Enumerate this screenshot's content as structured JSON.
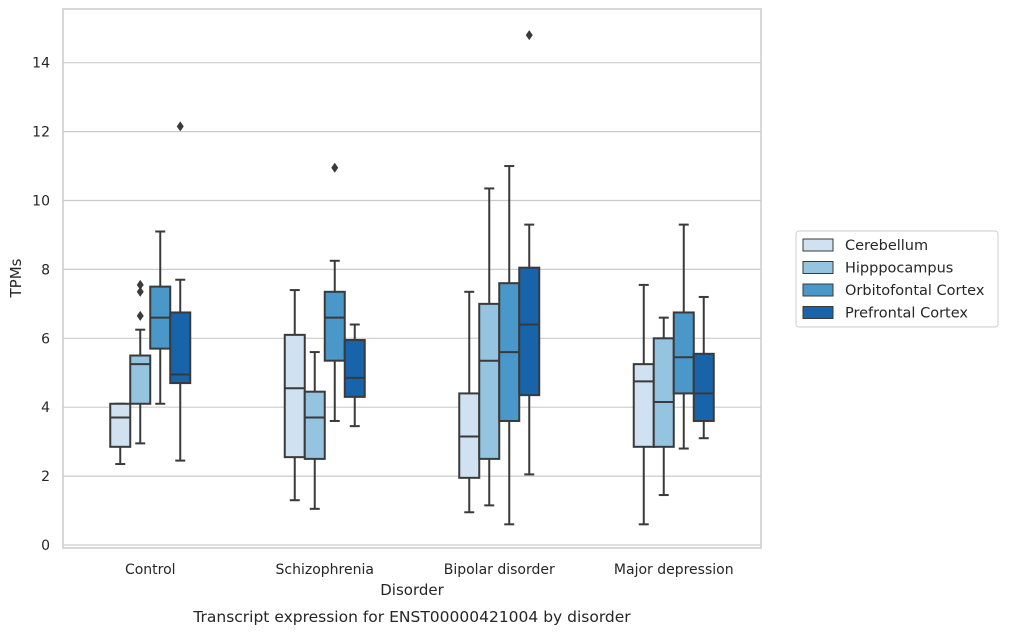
{
  "caption": "Transcript expression for ENST00000421004 by disorder",
  "chart_data": {
    "type": "box",
    "xlabel": "Disorder",
    "ylabel": "TPMs",
    "ylim": [
      -0.2,
      15.4
    ],
    "yticks": [
      0,
      2,
      4,
      6,
      8,
      10,
      12,
      14
    ],
    "grid": "horizontal",
    "legend_position": "right",
    "categories": [
      "Control",
      "Schizophrenia",
      "Bipolar disorder",
      "Major depression"
    ],
    "series": [
      {
        "name": "Cerebellum",
        "color": "#d0e1f2",
        "boxes": [
          {
            "whisker_low": 2.35,
            "q1": 2.85,
            "median": 3.7,
            "q3": 4.1,
            "whisker_high": 4.1,
            "outliers": []
          },
          {
            "whisker_low": 1.3,
            "q1": 2.55,
            "median": 4.55,
            "q3": 6.1,
            "whisker_high": 7.4,
            "outliers": []
          },
          {
            "whisker_low": 0.95,
            "q1": 1.95,
            "median": 3.15,
            "q3": 4.4,
            "whisker_high": 7.35,
            "outliers": []
          },
          {
            "whisker_low": 0.6,
            "q1": 2.85,
            "median": 4.75,
            "q3": 5.25,
            "whisker_high": 7.55,
            "outliers": []
          }
        ]
      },
      {
        "name": "Hipppocampus",
        "color": "#94c4df",
        "boxes": [
          {
            "whisker_low": 2.95,
            "q1": 4.1,
            "median": 5.25,
            "q3": 5.5,
            "whisker_high": 6.25,
            "outliers": [
              6.65,
              7.35,
              7.55
            ]
          },
          {
            "whisker_low": 1.05,
            "q1": 2.5,
            "median": 3.7,
            "q3": 4.45,
            "whisker_high": 5.6,
            "outliers": []
          },
          {
            "whisker_low": 1.15,
            "q1": 2.5,
            "median": 5.35,
            "q3": 7.0,
            "whisker_high": 10.35,
            "outliers": []
          },
          {
            "whisker_low": 1.45,
            "q1": 2.85,
            "median": 4.15,
            "q3": 6.0,
            "whisker_high": 6.6,
            "outliers": []
          }
        ]
      },
      {
        "name": "Orbitofontal Cortex",
        "color": "#4a98c9",
        "boxes": [
          {
            "whisker_low": 4.1,
            "q1": 5.7,
            "median": 6.6,
            "q3": 7.5,
            "whisker_high": 9.1,
            "outliers": []
          },
          {
            "whisker_low": 3.6,
            "q1": 5.35,
            "median": 6.6,
            "q3": 7.35,
            "whisker_high": 8.25,
            "outliers": [
              10.95
            ]
          },
          {
            "whisker_low": 0.6,
            "q1": 3.6,
            "median": 5.6,
            "q3": 7.6,
            "whisker_high": 11.0,
            "outliers": []
          },
          {
            "whisker_low": 2.8,
            "q1": 4.4,
            "median": 5.45,
            "q3": 6.75,
            "whisker_high": 9.3,
            "outliers": []
          }
        ]
      },
      {
        "name": "Prefrontal Cortex",
        "color": "#1764ab",
        "boxes": [
          {
            "whisker_low": 2.45,
            "q1": 4.7,
            "median": 4.95,
            "q3": 6.75,
            "whisker_high": 7.7,
            "outliers": [
              12.15
            ]
          },
          {
            "whisker_low": 3.45,
            "q1": 4.3,
            "median": 4.85,
            "q3": 5.95,
            "whisker_high": 6.4,
            "outliers": []
          },
          {
            "whisker_low": 2.05,
            "q1": 4.35,
            "median": 6.4,
            "q3": 8.05,
            "whisker_high": 9.3,
            "outliers": [
              14.8
            ]
          },
          {
            "whisker_low": 3.1,
            "q1": 3.6,
            "median": 4.4,
            "q3": 5.55,
            "whisker_high": 7.2,
            "outliers": []
          }
        ]
      }
    ]
  }
}
